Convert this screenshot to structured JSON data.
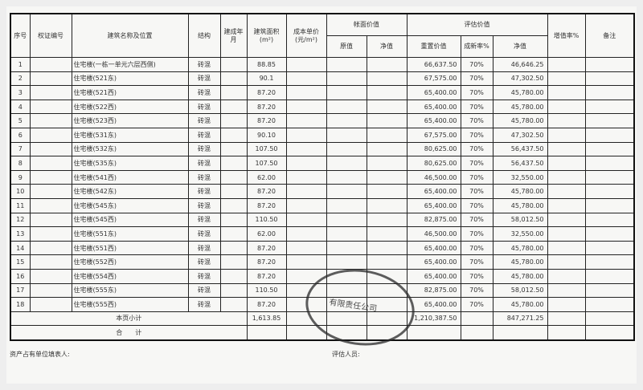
{
  "headers": {
    "seq": "序号",
    "cert_no": "权证编号",
    "name": "建筑名称及位置",
    "structure": "结构",
    "built": "建成年月",
    "area": "建筑面积(m²)",
    "unit_cost": "成本单价(元/m²)",
    "book_value": "帐面价值",
    "book_original": "原值",
    "book_net": "净值",
    "appraised_value": "评估价值",
    "replacement": "重置价值",
    "newness": "成新率%",
    "appraised_net": "净值",
    "increase_rate": "增值率%",
    "remarks": "备注"
  },
  "rows": [
    {
      "seq": "1",
      "name": "住宅楼(一栋一单元六层西侧)",
      "structure": "砖混",
      "area": "88.85",
      "replacement": "66,637.50",
      "newness": "70%",
      "net": "46,646.25"
    },
    {
      "seq": "2",
      "name": "住宅楼(521东)",
      "structure": "砖混",
      "area": "90.1",
      "replacement": "67,575.00",
      "newness": "70%",
      "net": "47,302.50"
    },
    {
      "seq": "3",
      "name": "住宅楼(521西)",
      "structure": "砖混",
      "area": "87.20",
      "replacement": "65,400.00",
      "newness": "70%",
      "net": "45,780.00"
    },
    {
      "seq": "4",
      "name": "住宅楼(522西)",
      "structure": "砖混",
      "area": "87.20",
      "replacement": "65,400.00",
      "newness": "70%",
      "net": "45,780.00"
    },
    {
      "seq": "5",
      "name": "住宅楼(523西)",
      "structure": "砖混",
      "area": "87.20",
      "replacement": "65,400.00",
      "newness": "70%",
      "net": "45,780.00"
    },
    {
      "seq": "6",
      "name": "住宅楼(531东)",
      "structure": "砖混",
      "area": "90.10",
      "replacement": "67,575.00",
      "newness": "70%",
      "net": "47,302.50"
    },
    {
      "seq": "7",
      "name": "住宅楼(532东)",
      "structure": "砖混",
      "area": "107.50",
      "replacement": "80,625.00",
      "newness": "70%",
      "net": "56,437.50"
    },
    {
      "seq": "8",
      "name": "住宅楼(535东)",
      "structure": "砖混",
      "area": "107.50",
      "replacement": "80,625.00",
      "newness": "70%",
      "net": "56,437.50"
    },
    {
      "seq": "9",
      "name": "住宅楼(541西)",
      "structure": "砖混",
      "area": "62.00",
      "replacement": "46,500.00",
      "newness": "70%",
      "net": "32,550.00"
    },
    {
      "seq": "10",
      "name": "住宅楼(542东)",
      "structure": "砖混",
      "area": "87.20",
      "replacement": "65,400.00",
      "newness": "70%",
      "net": "45,780.00"
    },
    {
      "seq": "11",
      "name": "住宅楼(545东)",
      "structure": "砖混",
      "area": "87.20",
      "replacement": "65,400.00",
      "newness": "70%",
      "net": "45,780.00"
    },
    {
      "seq": "12",
      "name": "住宅楼(545西)",
      "structure": "砖混",
      "area": "110.50",
      "replacement": "82,875.00",
      "newness": "70%",
      "net": "58,012.50"
    },
    {
      "seq": "13",
      "name": "住宅楼(551东)",
      "structure": "砖混",
      "area": "62.00",
      "replacement": "46,500.00",
      "newness": "70%",
      "net": "32,550.00"
    },
    {
      "seq": "14",
      "name": "住宅楼(551西)",
      "structure": "砖混",
      "area": "87.20",
      "replacement": "65,400.00",
      "newness": "70%",
      "net": "45,780.00"
    },
    {
      "seq": "15",
      "name": "住宅楼(552西)",
      "structure": "砖混",
      "area": "87.20",
      "replacement": "65,400.00",
      "newness": "70%",
      "net": "45,780.00"
    },
    {
      "seq": "16",
      "name": "住宅楼(554西)",
      "structure": "砖混",
      "area": "87.20",
      "replacement": "65,400.00",
      "newness": "70%",
      "net": "45,780.00"
    },
    {
      "seq": "17",
      "name": "住宅楼(555东)",
      "structure": "砖混",
      "area": "110.50",
      "replacement": "82,875.00",
      "newness": "70%",
      "net": "58,012.50"
    },
    {
      "seq": "18",
      "name": "住宅楼(555西)",
      "structure": "砖混",
      "area": "87.20",
      "replacement": "65,400.00",
      "newness": "70%",
      "net": "45,780.00"
    }
  ],
  "subtotal": {
    "label": "本页小计",
    "area": "1,613.85",
    "replacement": "1,210,387.50",
    "net": "847,271.25"
  },
  "total": {
    "label": "合　　计"
  },
  "footer": {
    "filler": "资产占有单位填表人:",
    "appraiser": "评估人员:"
  },
  "stamp": {
    "text": "有限责任公司"
  }
}
